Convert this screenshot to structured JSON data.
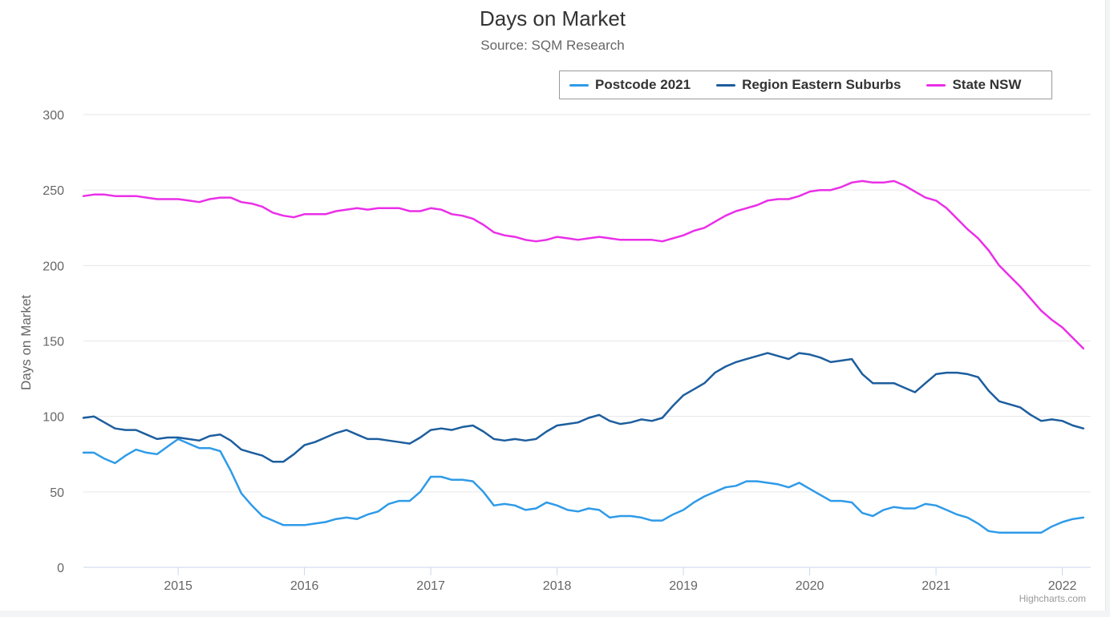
{
  "chart_data": {
    "type": "line",
    "title": "Days on Market",
    "subtitle": "Source: SQM Research",
    "ylabel": "Days on Market",
    "ylim": [
      0,
      300
    ],
    "yticks": [
      0,
      50,
      100,
      150,
      200,
      250,
      300
    ],
    "x_start": "2014-04",
    "x_interval_months": 1,
    "xlim": [
      "2014-04",
      "2022-03"
    ],
    "xticks": [
      "2015",
      "2016",
      "2017",
      "2018",
      "2019",
      "2020",
      "2021",
      "2022"
    ],
    "grid": true,
    "legend_position": "top-right",
    "series": [
      {
        "name": "Postcode 2021",
        "color": "#2f9be8",
        "values": [
          76,
          76,
          72,
          69,
          74,
          78,
          76,
          75,
          80,
          85,
          82,
          79,
          79,
          77,
          64,
          49,
          41,
          34,
          31,
          28,
          28,
          28,
          29,
          30,
          32,
          33,
          32,
          35,
          37,
          42,
          44,
          44,
          50,
          60,
          60,
          58,
          58,
          57,
          50,
          41,
          42,
          41,
          38,
          39,
          43,
          41,
          38,
          37,
          39,
          38,
          33,
          34,
          34,
          33,
          31,
          31,
          35,
          38,
          43,
          47,
          50,
          53,
          54,
          57,
          57,
          56,
          55,
          53,
          56,
          52,
          48,
          44,
          44,
          43,
          36,
          34,
          38,
          40,
          39,
          39,
          42,
          41,
          38,
          35,
          33,
          29,
          24,
          23,
          23,
          23,
          23,
          23,
          27,
          30,
          32,
          33
        ]
      },
      {
        "name": "Region Eastern Suburbs",
        "color": "#1d5e9e",
        "values": [
          99,
          100,
          96,
          92,
          91,
          91,
          88,
          85,
          86,
          86,
          85,
          84,
          87,
          88,
          84,
          78,
          76,
          74,
          70,
          70,
          75,
          81,
          83,
          86,
          89,
          91,
          88,
          85,
          85,
          84,
          83,
          82,
          86,
          91,
          92,
          91,
          93,
          94,
          90,
          85,
          84,
          85,
          84,
          85,
          90,
          94,
          95,
          96,
          99,
          101,
          97,
          95,
          96,
          98,
          97,
          99,
          107,
          114,
          118,
          122,
          129,
          133,
          136,
          138,
          140,
          142,
          140,
          138,
          142,
          141,
          139,
          136,
          137,
          138,
          128,
          122,
          122,
          122,
          119,
          116,
          122,
          128,
          129,
          129,
          128,
          126,
          117,
          110,
          108,
          106,
          101,
          97,
          98,
          97,
          94,
          92
        ]
      },
      {
        "name": "State NSW",
        "color": "#ea2fe8",
        "values": [
          246,
          247,
          247,
          246,
          246,
          246,
          245,
          244,
          244,
          244,
          243,
          242,
          244,
          245,
          245,
          242,
          241,
          239,
          235,
          233,
          232,
          234,
          234,
          234,
          236,
          237,
          238,
          237,
          238,
          238,
          238,
          236,
          236,
          238,
          237,
          234,
          233,
          231,
          227,
          222,
          220,
          219,
          217,
          216,
          217,
          219,
          218,
          217,
          218,
          219,
          218,
          217,
          217,
          217,
          217,
          216,
          218,
          220,
          223,
          225,
          229,
          233,
          236,
          238,
          240,
          243,
          244,
          244,
          246,
          249,
          250,
          250,
          252,
          255,
          256,
          255,
          255,
          256,
          253,
          249,
          245,
          243,
          238,
          231,
          224,
          218,
          210,
          200,
          193,
          186,
          178,
          170,
          164,
          159,
          152,
          145
        ]
      }
    ]
  },
  "legend": {
    "items": [
      "Postcode 2021",
      "Region Eastern Suburbs",
      "State NSW"
    ]
  },
  "credit": "Highcharts.com"
}
